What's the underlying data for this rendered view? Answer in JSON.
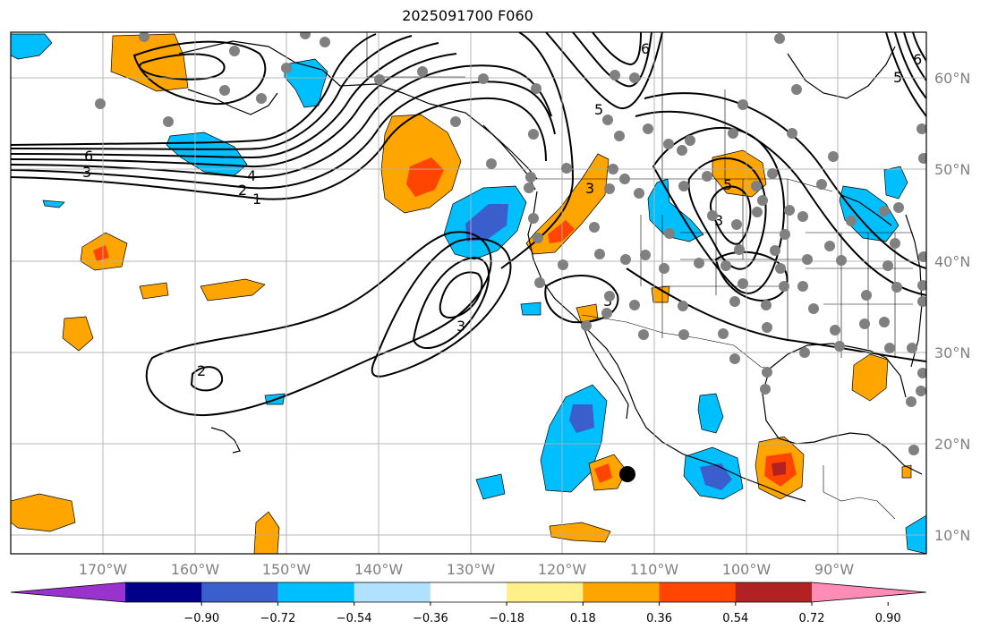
{
  "title": "2025091700 F060",
  "latitude_labels": [
    "60°N",
    "50°N",
    "40°N",
    "30°N",
    "20°N",
    "10°N"
  ],
  "longitude_labels": [
    "170°W",
    "160°W",
    "150°W",
    "140°W",
    "130°W",
    "120°W",
    "110°W",
    "100°W",
    "90°W"
  ],
  "colorbar": {
    "ticks": [
      "−0.90",
      "−0.72",
      "−0.54",
      "−0.36",
      "−0.18",
      "0.18",
      "0.36",
      "0.54",
      "0.72",
      "0.90"
    ],
    "colors": [
      "#9a32cd",
      "#00008b",
      "#3a5fcd",
      "#00bfff",
      "#b0e2ff",
      "#ffffff",
      "#fff08a",
      "#ffa500",
      "#ff4500",
      "#b22222",
      "#ff8cb4"
    ]
  },
  "contour_labels": [
    "6",
    "3",
    "4",
    "2",
    "1",
    "2",
    "3",
    "3",
    "3",
    "3",
    "5",
    "6",
    "5",
    "6",
    "5"
  ],
  "colors": {
    "contour": "#000000",
    "stations": "#808080",
    "gridlines": "#b0b0b0",
    "coastline": "#000000"
  }
}
